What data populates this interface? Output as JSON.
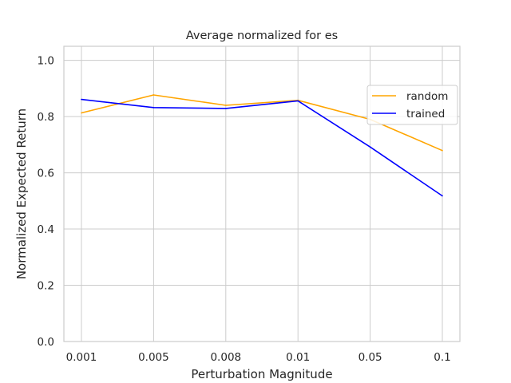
{
  "chart_data": {
    "type": "line",
    "title": "Average normalized for es",
    "xlabel": "Perturbation Magnitude",
    "ylabel": "Normalized Expected Return",
    "categories": [
      "0.001",
      "0.005",
      "0.008",
      "0.01",
      "0.05",
      "0.1"
    ],
    "yticks": [
      "0.0",
      "0.2",
      "0.4",
      "0.6",
      "0.8",
      "1.0"
    ],
    "ylim": [
      0,
      1.05
    ],
    "grid": true,
    "legend_position": "upper-right",
    "series": [
      {
        "name": "random",
        "color": "#ffa500",
        "values": [
          0.813,
          0.877,
          0.84,
          0.858,
          0.79,
          0.679
        ]
      },
      {
        "name": "trained",
        "color": "#0000ff",
        "values": [
          0.861,
          0.832,
          0.829,
          0.856,
          0.692,
          0.518
        ]
      }
    ]
  }
}
